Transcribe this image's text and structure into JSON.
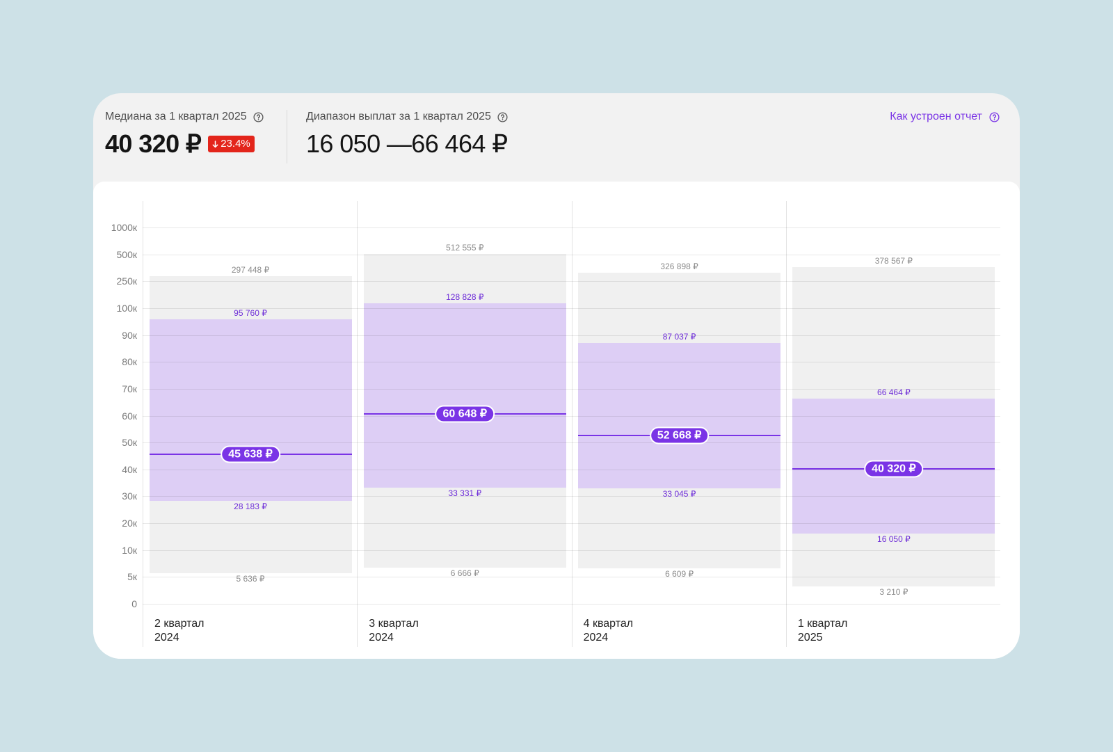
{
  "colors": {
    "page_background": "#cde1e7",
    "card_background": "#f2f2f2",
    "accent": "#7a34e6",
    "range_fill": "#ddcef5",
    "spread_fill": "#f0f0f0",
    "decrease_badge": "#e3251b"
  },
  "icons": {
    "help": "question-circle-icon",
    "change_direction": "arrow-down-icon"
  },
  "summary": {
    "median": {
      "label": "Медиана за 1 квартал 2025",
      "value": "40 320 ₽",
      "change": "23.4%"
    },
    "range": {
      "label": "Диапазон выплат за 1 квартал 2025",
      "value": "16 050 —66 464 ₽"
    },
    "report_link": "Как устроен отчет"
  },
  "chart_data": {
    "type": "bar",
    "categories": [
      "2 квартал\n2024",
      "3 квартал\n2024",
      "4 квартал\n2024",
      "1 квартал\n2025"
    ],
    "ylim": [
      0,
      1000000
    ],
    "grid": true,
    "y_ticks": [
      {
        "value": 1000000,
        "label": "1000к"
      },
      {
        "value": 500000,
        "label": "500к"
      },
      {
        "value": 250000,
        "label": "250к"
      },
      {
        "value": 100000,
        "label": "100к"
      },
      {
        "value": 90000,
        "label": "90к"
      },
      {
        "value": 80000,
        "label": "80к"
      },
      {
        "value": 70000,
        "label": "70к"
      },
      {
        "value": 60000,
        "label": "60к"
      },
      {
        "value": 50000,
        "label": "50к"
      },
      {
        "value": 40000,
        "label": "40к"
      },
      {
        "value": 30000,
        "label": "30к"
      },
      {
        "value": 20000,
        "label": "20к"
      },
      {
        "value": 10000,
        "label": "10к"
      },
      {
        "value": 5000,
        "label": "5к"
      },
      {
        "value": 0,
        "label": "0"
      }
    ],
    "bars": [
      {
        "min": 5636,
        "low": 28183,
        "median": 45638,
        "high": 95760,
        "max": 297448,
        "min_label": "5 636 ₽",
        "low_label": "28 183 ₽",
        "median_label": "45 638 ₽",
        "high_label": "95 760 ₽",
        "max_label": "297 448 ₽"
      },
      {
        "min": 6666,
        "low": 33331,
        "median": 60648,
        "high": 128828,
        "max": 512555,
        "min_label": "6 666 ₽",
        "low_label": "33 331 ₽",
        "median_label": "60 648 ₽",
        "high_label": "128 828 ₽",
        "max_label": "512 555 ₽"
      },
      {
        "min": 6609,
        "low": 33045,
        "median": 52668,
        "high": 87037,
        "max": 326898,
        "min_label": "6 609 ₽",
        "low_label": "33 045 ₽",
        "median_label": "52 668 ₽",
        "high_label": "87 037 ₽",
        "max_label": "326 898 ₽"
      },
      {
        "min": 3210,
        "low": 16050,
        "median": 40320,
        "high": 66464,
        "max": 378567,
        "min_label": "3 210 ₽",
        "low_label": "16 050 ₽",
        "median_label": "40 320 ₽",
        "high_label": "66 464 ₽",
        "max_label": "378 567 ₽"
      }
    ]
  }
}
